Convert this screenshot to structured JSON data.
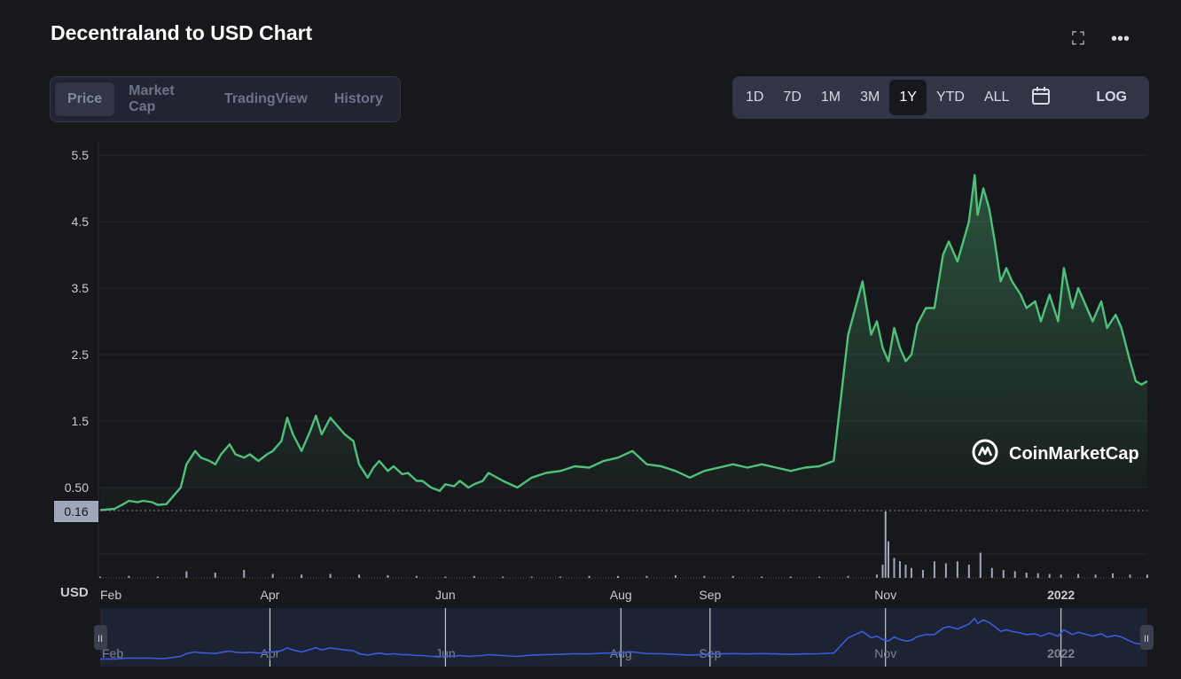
{
  "header": {
    "title": "Decentraland to USD Chart",
    "expand_icon": "expand-icon",
    "more_icon": "more-icon"
  },
  "tabs": [
    {
      "label": "Price",
      "active": true
    },
    {
      "label": "Market Cap",
      "active": false
    },
    {
      "label": "TradingView",
      "active": false
    },
    {
      "label": "History",
      "active": false
    }
  ],
  "ranges": [
    {
      "label": "1D",
      "active": false
    },
    {
      "label": "7D",
      "active": false
    },
    {
      "label": "1M",
      "active": false
    },
    {
      "label": "3M",
      "active": false
    },
    {
      "label": "1Y",
      "active": true
    },
    {
      "label": "YTD",
      "active": false
    },
    {
      "label": "ALL",
      "active": false
    }
  ],
  "calendar_icon": "calendar-icon",
  "log_label": "LOG",
  "colors": {
    "line": "#4fc17b",
    "navigator_line": "#3b5bdb",
    "background": "#17181b"
  },
  "chart_data": {
    "type": "area",
    "title": "",
    "currency_label": "USD",
    "watermark": "CoinMarketCap",
    "y_ticks": [
      "5.5",
      "4.5",
      "3.5",
      "2.5",
      "1.5",
      "0.50"
    ],
    "ylim": [
      0,
      5.5
    ],
    "current_label": "0.16",
    "x_ticks": [
      {
        "label": "Feb",
        "day": 0
      },
      {
        "label": "Apr",
        "day": 59
      },
      {
        "label": "Jun",
        "day": 120
      },
      {
        "label": "Aug",
        "day": 181
      },
      {
        "label": "Sep",
        "day": 212
      },
      {
        "label": "Nov",
        "day": 273
      },
      {
        "label": "2022",
        "day": 334
      }
    ],
    "x_range_days": [
      0,
      364
    ],
    "series": [
      {
        "name": "Price",
        "days": [
          0,
          5,
          8,
          10,
          13,
          15,
          18,
          20,
          23,
          25,
          28,
          30,
          33,
          35,
          38,
          40,
          42,
          45,
          47,
          50,
          52,
          55,
          58,
          60,
          63,
          65,
          67,
          70,
          73,
          75,
          77,
          80,
          83,
          85,
          88,
          90,
          93,
          95,
          97,
          100,
          102,
          105,
          107,
          110,
          112,
          115,
          118,
          120,
          123,
          125,
          128,
          130,
          133,
          135,
          140,
          145,
          150,
          155,
          160,
          165,
          170,
          175,
          180,
          185,
          190,
          195,
          200,
          205,
          210,
          215,
          220,
          225,
          230,
          235,
          240,
          245,
          250,
          255,
          260,
          265,
          268,
          270,
          271,
          272,
          274,
          276,
          278,
          280,
          282,
          284,
          287,
          290,
          293,
          295,
          298,
          300,
          302,
          304,
          305,
          307,
          309,
          311,
          313,
          315,
          317,
          320,
          322,
          325,
          327,
          330,
          333,
          335,
          338,
          340,
          342,
          345,
          348,
          350,
          353,
          355,
          358,
          360,
          362,
          364
        ],
        "values": [
          0.16,
          0.18,
          0.25,
          0.3,
          0.28,
          0.3,
          0.28,
          0.24,
          0.25,
          0.35,
          0.5,
          0.85,
          1.05,
          0.95,
          0.9,
          0.85,
          1.0,
          1.15,
          1.0,
          0.95,
          1.0,
          0.9,
          1.0,
          1.05,
          1.2,
          1.55,
          1.3,
          1.05,
          1.35,
          1.58,
          1.3,
          1.55,
          1.4,
          1.3,
          1.2,
          0.85,
          0.65,
          0.8,
          0.9,
          0.75,
          0.82,
          0.7,
          0.72,
          0.6,
          0.6,
          0.5,
          0.45,
          0.55,
          0.52,
          0.6,
          0.5,
          0.55,
          0.6,
          0.72,
          0.6,
          0.5,
          0.65,
          0.72,
          0.75,
          0.82,
          0.8,
          0.9,
          0.95,
          1.05,
          0.85,
          0.82,
          0.75,
          0.65,
          0.75,
          0.8,
          0.85,
          0.8,
          0.85,
          0.8,
          0.75,
          0.8,
          0.82,
          0.9,
          2.8,
          3.6,
          2.8,
          3.0,
          2.8,
          2.6,
          2.4,
          2.9,
          2.6,
          2.4,
          2.5,
          2.95,
          3.2,
          3.2,
          4.0,
          4.2,
          3.9,
          4.2,
          4.5,
          5.2,
          4.6,
          5.0,
          4.7,
          4.2,
          3.6,
          3.8,
          3.6,
          3.4,
          3.2,
          3.3,
          3.0,
          3.4,
          3.0,
          3.8,
          3.2,
          3.5,
          3.3,
          3.0,
          3.3,
          2.9,
          3.1,
          2.9,
          2.4,
          2.1,
          2.05,
          2.1
        ]
      }
    ],
    "volume_days": [
      0,
      10,
      20,
      30,
      40,
      50,
      60,
      70,
      80,
      90,
      100,
      110,
      120,
      130,
      140,
      150,
      160,
      170,
      180,
      190,
      200,
      210,
      220,
      230,
      240,
      250,
      260,
      270,
      272,
      273,
      274,
      276,
      278,
      280,
      282,
      286,
      290,
      294,
      298,
      302,
      306,
      310,
      314,
      318,
      322,
      326,
      330,
      334,
      340,
      346,
      352,
      358,
      364
    ],
    "volume": [
      0.02,
      0.03,
      0.02,
      0.1,
      0.08,
      0.12,
      0.06,
      0.05,
      0.06,
      0.05,
      0.04,
      0.03,
      0.02,
      0.03,
      0.02,
      0.02,
      0.02,
      0.03,
      0.03,
      0.03,
      0.04,
      0.03,
      0.03,
      0.02,
      0.02,
      0.02,
      0.03,
      0.05,
      0.2,
      1.0,
      0.55,
      0.3,
      0.25,
      0.2,
      0.15,
      0.12,
      0.25,
      0.22,
      0.25,
      0.2,
      0.38,
      0.15,
      0.12,
      0.1,
      0.08,
      0.07,
      0.06,
      0.05,
      0.06,
      0.05,
      0.07,
      0.05,
      0.05
    ],
    "navigator": {
      "x_ticks": [
        "Feb",
        "Apr",
        "Jun",
        "Aug",
        "Sep",
        "Nov",
        "2022"
      ]
    }
  }
}
